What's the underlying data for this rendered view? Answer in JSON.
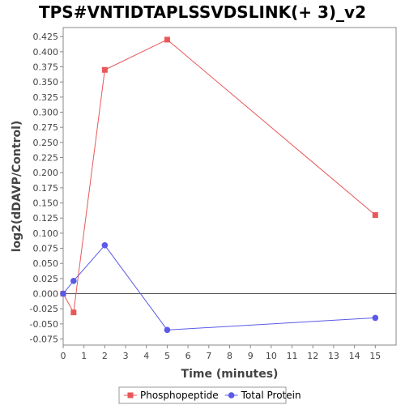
{
  "chart_data": {
    "type": "line",
    "title": "TPS#VNTIDTAPLSSVDSLINK(+ 3)_v2",
    "xlabel": "Time (minutes)",
    "ylabel": "log2(dDAVP/Control)",
    "xlim": [
      0,
      16
    ],
    "ylim": [
      -0.085,
      0.44
    ],
    "x_ticks": [
      0,
      1,
      2,
      3,
      4,
      5,
      6,
      7,
      8,
      9,
      10,
      11,
      12,
      13,
      14,
      15
    ],
    "y_ticks": [
      -0.075,
      -0.05,
      -0.025,
      0.0,
      0.025,
      0.05,
      0.075,
      0.1,
      0.125,
      0.15,
      0.175,
      0.2,
      0.225,
      0.25,
      0.275,
      0.3,
      0.325,
      0.35,
      0.375,
      0.4,
      0.425
    ],
    "grid": false,
    "legend_position": "bottom",
    "series": [
      {
        "name": "Phosphopeptide",
        "color": "#e8585a",
        "marker": "square",
        "x": [
          0,
          0.5,
          2,
          5,
          15
        ],
        "y": [
          0.0,
          -0.031,
          0.37,
          0.42,
          0.13
        ]
      },
      {
        "name": "Total Protein",
        "color": "#5a5ae8",
        "marker": "circle",
        "x": [
          0,
          0.5,
          2,
          5,
          15
        ],
        "y": [
          0.0,
          0.021,
          0.08,
          -0.06,
          -0.04
        ]
      }
    ]
  }
}
